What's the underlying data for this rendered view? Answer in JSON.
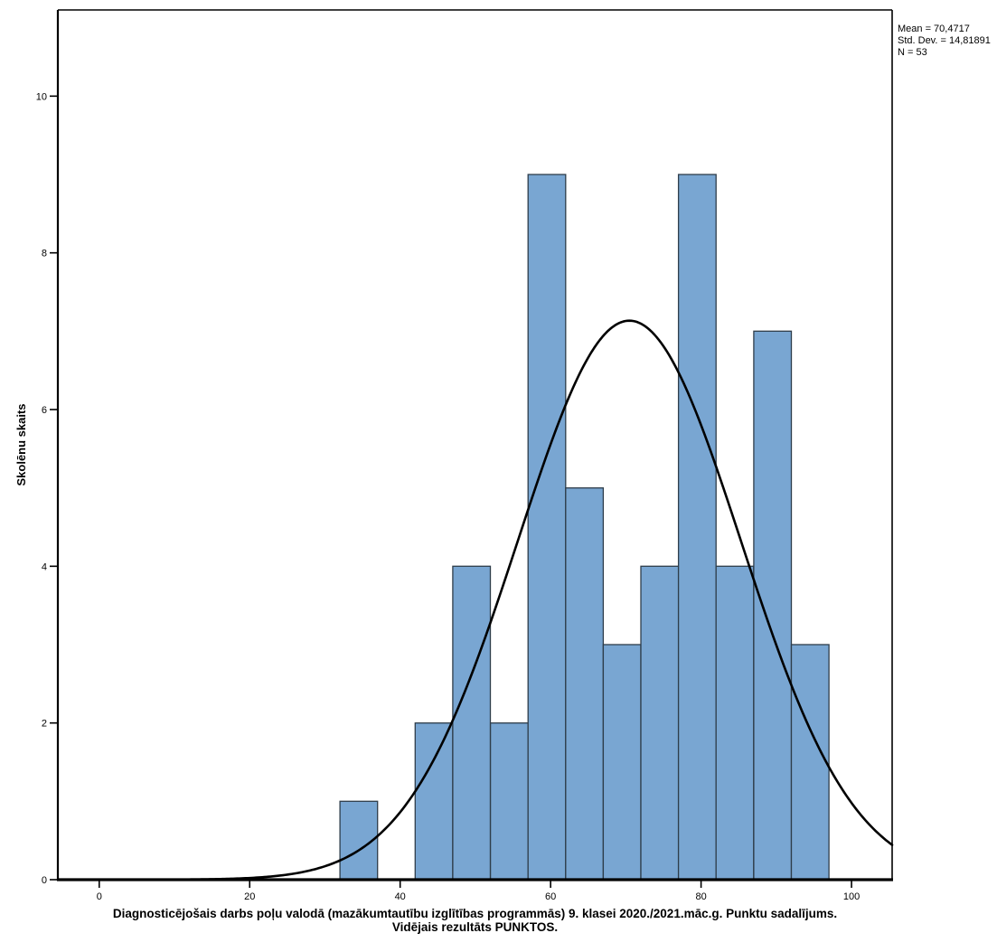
{
  "figure": {
    "y_axis_label": "Skolēnu skaits",
    "caption_line1": "Diagnosticējošais darbs poļu valodā (mazākumtautību izglītības programmās) 9. klasei 2020./2021.māc.g. Punktu sadalījums.",
    "caption_line2": "Vidējais rezultāts PUNKTOS.",
    "stats_box": {
      "lines": [
        "Mean = 70,4717",
        "Std. Dev. = 14,81891",
        "N = 53"
      ]
    }
  },
  "chart_data": {
    "type": "bar",
    "subtype": "histogram",
    "title": "Diagnosticējošais darbs poļu valodā (mazākumtautību izglītības programmās) 9. klasei 2020./2021.māc.g. Punktu sadalījums. Vidējais rezultāts PUNKTOS.",
    "xlabel": "",
    "ylabel": "Skolēnu skaits",
    "bin_edges": [
      32,
      37,
      42,
      47,
      52,
      57,
      62,
      67,
      72,
      77,
      82,
      87,
      92,
      97
    ],
    "bin_counts": [
      1,
      0,
      2,
      4,
      2,
      9,
      5,
      3,
      4,
      9,
      4,
      7,
      3
    ],
    "normal_curve": {
      "mean": 70.4717,
      "std_dev": 14.81891,
      "n": 53,
      "bin_width": 5
    },
    "x_ticks": [
      0,
      20,
      40,
      60,
      80,
      100
    ],
    "y_ticks": [
      0,
      2,
      4,
      6,
      8,
      10
    ],
    "xlim": [
      -5.5,
      105.4
    ],
    "ylim": [
      0,
      11.1
    ],
    "grid": false,
    "legend": "none",
    "colors": {
      "bar_fill": "#79A6D2",
      "bar_stroke": "#2E3D4A",
      "curve": "#000000",
      "axis": "#000000",
      "text": "#000000"
    }
  }
}
